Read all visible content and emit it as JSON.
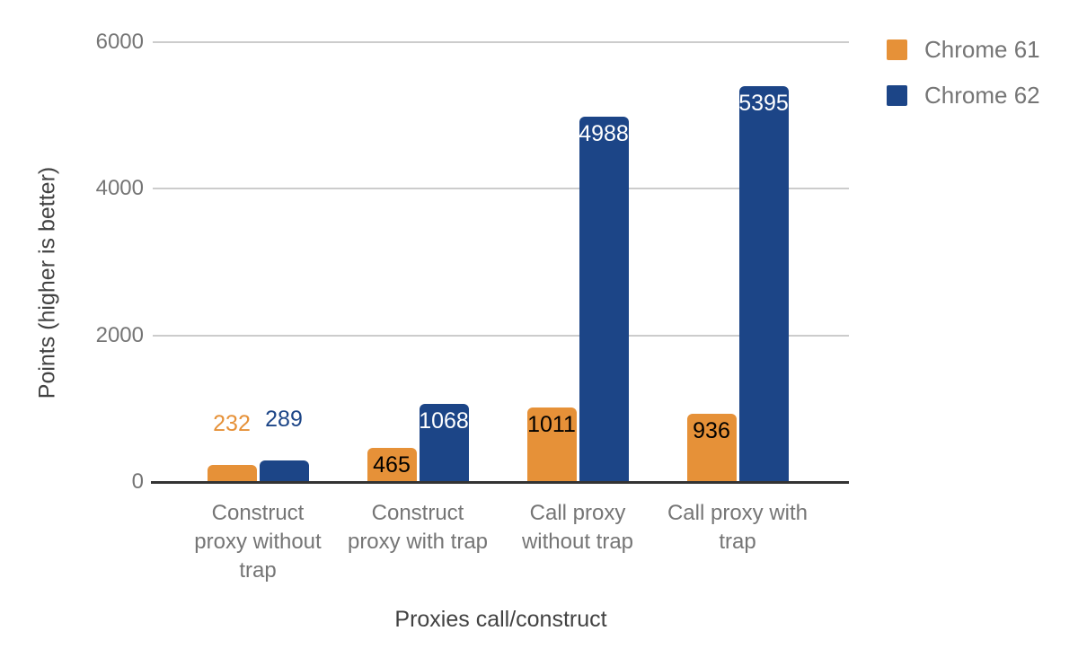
{
  "chart_data": {
    "type": "bar",
    "title": "",
    "xlabel": "Proxies call/construct",
    "ylabel": "Points (higher is better)",
    "ylim": [
      0,
      6000
    ],
    "yticks": [
      0,
      2000,
      4000,
      6000
    ],
    "grid": true,
    "legend_position": "top-right",
    "categories": [
      "Construct proxy without trap",
      "Construct proxy with trap",
      "Call proxy without trap",
      "Call proxy with trap"
    ],
    "category_label_lines": [
      [
        "Construct",
        "proxy without",
        "trap"
      ],
      [
        "Construct",
        "proxy with trap"
      ],
      [
        "Call proxy",
        "without trap"
      ],
      [
        "Call proxy with",
        "trap"
      ]
    ],
    "series": [
      {
        "name": "Chrome 61",
        "color": "#e69138",
        "annotation_inside_color": "#000000",
        "values": [
          232,
          465,
          1011,
          936
        ]
      },
      {
        "name": "Chrome 62",
        "color": "#1c4587",
        "annotation_inside_color": "#ffffff",
        "values": [
          289,
          1068,
          4988,
          5395
        ]
      }
    ]
  },
  "colors": {
    "background": "#ffffff",
    "gridline": "#cccccc",
    "axis_line": "#333333",
    "tick_text": "#757575",
    "category_text": "#757575",
    "legend_text": "#757575",
    "axis_title_text": "#424242"
  }
}
